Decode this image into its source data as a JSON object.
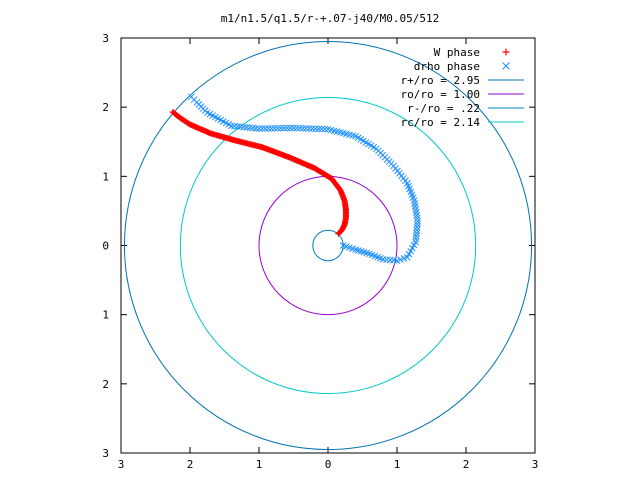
{
  "chart_data": {
    "type": "scatter",
    "title": "m1/n1.5/q1.5/r-+.07-j40/M0.05/512",
    "xlim": [
      -3,
      3
    ],
    "ylim": [
      -3,
      3
    ],
    "xticks": [
      {
        "value": -3,
        "label": "3"
      },
      {
        "value": -2,
        "label": "2"
      },
      {
        "value": -1,
        "label": "1"
      },
      {
        "value": 0,
        "label": "0"
      },
      {
        "value": 1,
        "label": "1"
      },
      {
        "value": 2,
        "label": "2"
      },
      {
        "value": 3,
        "label": "3"
      }
    ],
    "yticks": [
      {
        "value": 3,
        "label": "3"
      },
      {
        "value": 2,
        "label": "2"
      },
      {
        "value": 1,
        "label": "1"
      },
      {
        "value": 0,
        "label": "0"
      },
      {
        "value": -1,
        "label": "1"
      },
      {
        "value": -2,
        "label": "2"
      },
      {
        "value": -3,
        "label": "3"
      }
    ],
    "legend_position": "top-right",
    "circles": [
      {
        "label": "r+/ro = 2.95",
        "radius": 2.95,
        "color": "#0072b2"
      },
      {
        "label": "ro/ro = 1.00",
        "radius": 1.0,
        "color": "#9400d3"
      },
      {
        "label": "r-/ro = .22",
        "radius": 0.22,
        "color": "#0080c0"
      },
      {
        "label": "rc/ro = 2.14",
        "radius": 2.14,
        "color": "#00c8c8"
      }
    ],
    "series": [
      {
        "name": "W phase",
        "marker": "+",
        "color": "#ff0000",
        "points": [
          [
            0.15,
            0.17
          ],
          [
            0.2,
            0.22
          ],
          [
            0.24,
            0.3
          ],
          [
            0.26,
            0.4
          ],
          [
            0.26,
            0.52
          ],
          [
            0.24,
            0.65
          ],
          [
            0.18,
            0.8
          ],
          [
            0.05,
            0.97
          ],
          [
            -0.2,
            1.12
          ],
          [
            -0.55,
            1.27
          ],
          [
            -0.95,
            1.42
          ],
          [
            -1.35,
            1.52
          ],
          [
            -1.7,
            1.62
          ],
          [
            -2.0,
            1.75
          ],
          [
            -2.15,
            1.85
          ],
          [
            -2.25,
            1.93
          ]
        ]
      },
      {
        "name": "drho phase",
        "marker": "x",
        "color": "#1e90ff",
        "points": [
          [
            0.22,
            0.0
          ],
          [
            0.4,
            -0.06
          ],
          [
            0.6,
            -0.12
          ],
          [
            0.8,
            -0.2
          ],
          [
            1.0,
            -0.22
          ],
          [
            1.15,
            -0.17
          ],
          [
            1.27,
            0.05
          ],
          [
            1.3,
            0.35
          ],
          [
            1.25,
            0.65
          ],
          [
            1.15,
            0.9
          ],
          [
            0.95,
            1.15
          ],
          [
            0.7,
            1.4
          ],
          [
            0.4,
            1.58
          ],
          [
            0.0,
            1.68
          ],
          [
            -0.5,
            1.7
          ],
          [
            -1.0,
            1.69
          ],
          [
            -1.4,
            1.73
          ],
          [
            -1.75,
            1.92
          ],
          [
            -1.9,
            2.07
          ],
          [
            -1.98,
            2.15
          ]
        ]
      }
    ]
  }
}
